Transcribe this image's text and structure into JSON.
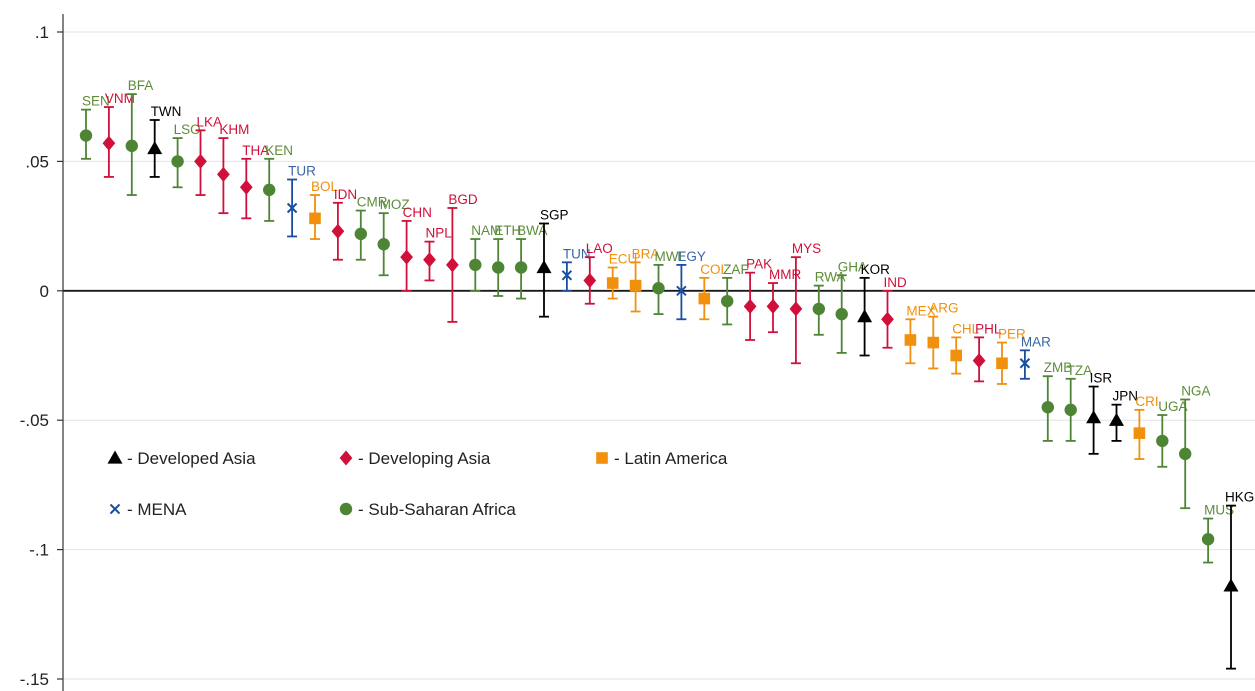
{
  "chart_data": {
    "type": "scatter",
    "title": "",
    "xlabel": "",
    "ylabel": "",
    "ylim": [
      -0.15,
      0.1
    ],
    "yticks": [
      {
        "value": 0.1,
        "label": ".1"
      },
      {
        "value": 0.05,
        "label": ".05"
      },
      {
        "value": 0,
        "label": "0"
      },
      {
        "value": -0.05,
        "label": "-.05"
      },
      {
        "value": -0.1,
        "label": "-.1"
      },
      {
        "value": -0.15,
        "label": "-.15"
      }
    ],
    "grid": true,
    "zero_line": true,
    "legend_position": "lower-left",
    "groups": [
      {
        "key": "dev_asia",
        "name": "- Developed Asia",
        "color": "#000000",
        "marker": "triangle"
      },
      {
        "key": "devg_asia",
        "name": "- Developing Asia",
        "color": "#d0103a",
        "marker": "diamond"
      },
      {
        "key": "latam",
        "name": "- Latin America",
        "color": "#f0900c",
        "marker": "square"
      },
      {
        "key": "mena",
        "name": "- MENA",
        "color": "#1a4fa0",
        "marker": "x"
      },
      {
        "key": "ssa",
        "name": "- Sub-Saharan Africa",
        "color": "#4e8535",
        "marker": "circle"
      }
    ],
    "label_colors": {
      "dev_asia": "#000000",
      "devg_asia": "#d0103a",
      "latam": "#f0900c",
      "mena": "#3a66a8",
      "ssa": "#5e8c3a"
    },
    "points": [
      {
        "label": "SEN",
        "group": "ssa",
        "value": 0.06,
        "low": 0.051,
        "high": 0.07
      },
      {
        "label": "VNM",
        "group": "devg_asia",
        "value": 0.057,
        "low": 0.044,
        "high": 0.071
      },
      {
        "label": "BFA",
        "group": "ssa",
        "value": 0.056,
        "low": 0.037,
        "high": 0.076
      },
      {
        "label": "TWN",
        "group": "dev_asia",
        "value": 0.055,
        "low": 0.044,
        "high": 0.066
      },
      {
        "label": "LSO",
        "group": "ssa",
        "value": 0.05,
        "low": 0.04,
        "high": 0.059
      },
      {
        "label": "LKA",
        "group": "devg_asia",
        "value": 0.05,
        "low": 0.037,
        "high": 0.062
      },
      {
        "label": "KHM",
        "group": "devg_asia",
        "value": 0.045,
        "low": 0.03,
        "high": 0.059
      },
      {
        "label": "THA",
        "group": "devg_asia",
        "value": 0.04,
        "low": 0.028,
        "high": 0.051
      },
      {
        "label": "KEN",
        "group": "ssa",
        "value": 0.039,
        "low": 0.027,
        "high": 0.051
      },
      {
        "label": "TUR",
        "group": "mena",
        "value": 0.032,
        "low": 0.021,
        "high": 0.043
      },
      {
        "label": "BOL",
        "group": "latam",
        "value": 0.028,
        "low": 0.02,
        "high": 0.037
      },
      {
        "label": "IDN",
        "group": "devg_asia",
        "value": 0.023,
        "low": 0.012,
        "high": 0.034
      },
      {
        "label": "CMR",
        "group": "ssa",
        "value": 0.022,
        "low": 0.012,
        "high": 0.031
      },
      {
        "label": "MOZ",
        "group": "ssa",
        "value": 0.018,
        "low": 0.006,
        "high": 0.03
      },
      {
        "label": "CHN",
        "group": "devg_asia",
        "value": 0.013,
        "low": 0.0,
        "high": 0.027
      },
      {
        "label": "NPL",
        "group": "devg_asia",
        "value": 0.012,
        "low": 0.004,
        "high": 0.019
      },
      {
        "label": "BGD",
        "group": "devg_asia",
        "value": 0.01,
        "low": -0.012,
        "high": 0.032
      },
      {
        "label": "NAM",
        "group": "ssa",
        "value": 0.01,
        "low": 0.0,
        "high": 0.02
      },
      {
        "label": "ETH",
        "group": "ssa",
        "value": 0.009,
        "low": -0.002,
        "high": 0.02
      },
      {
        "label": "BWA",
        "group": "ssa",
        "value": 0.009,
        "low": -0.003,
        "high": 0.02
      },
      {
        "label": "SGP",
        "group": "dev_asia",
        "value": 0.009,
        "low": -0.01,
        "high": 0.026
      },
      {
        "label": "TUN",
        "group": "mena",
        "value": 0.006,
        "low": 0.0,
        "high": 0.011
      },
      {
        "label": "LAO",
        "group": "devg_asia",
        "value": 0.004,
        "low": -0.005,
        "high": 0.013
      },
      {
        "label": "ECU",
        "group": "latam",
        "value": 0.003,
        "low": -0.003,
        "high": 0.009
      },
      {
        "label": "BRA",
        "group": "latam",
        "value": 0.002,
        "low": -0.008,
        "high": 0.011
      },
      {
        "label": "MWI",
        "group": "ssa",
        "value": 0.001,
        "low": -0.009,
        "high": 0.01
      },
      {
        "label": "EGY",
        "group": "mena",
        "value": 0.0,
        "low": -0.011,
        "high": 0.01
      },
      {
        "label": "COL",
        "group": "latam",
        "value": -0.003,
        "low": -0.011,
        "high": 0.005
      },
      {
        "label": "ZAF",
        "group": "ssa",
        "value": -0.004,
        "low": -0.013,
        "high": 0.005
      },
      {
        "label": "PAK",
        "group": "devg_asia",
        "value": -0.006,
        "low": -0.019,
        "high": 0.007
      },
      {
        "label": "MMR",
        "group": "devg_asia",
        "value": -0.006,
        "low": -0.016,
        "high": 0.003
      },
      {
        "label": "MYS",
        "group": "devg_asia",
        "value": -0.007,
        "low": -0.028,
        "high": 0.013
      },
      {
        "label": "RWA",
        "group": "ssa",
        "value": -0.007,
        "low": -0.017,
        "high": 0.002
      },
      {
        "label": "GHA",
        "group": "ssa",
        "value": -0.009,
        "low": -0.024,
        "high": 0.006
      },
      {
        "label": "KOR",
        "group": "dev_asia",
        "value": -0.01,
        "low": -0.025,
        "high": 0.005
      },
      {
        "label": "IND",
        "group": "devg_asia",
        "value": -0.011,
        "low": -0.022,
        "high": 0.0
      },
      {
        "label": "MEX",
        "group": "latam",
        "value": -0.019,
        "low": -0.028,
        "high": -0.011
      },
      {
        "label": "ARG",
        "group": "latam",
        "value": -0.02,
        "low": -0.03,
        "high": -0.01
      },
      {
        "label": "CHL",
        "group": "latam",
        "value": -0.025,
        "low": -0.032,
        "high": -0.018
      },
      {
        "label": "PHL",
        "group": "devg_asia",
        "value": -0.027,
        "low": -0.035,
        "high": -0.018
      },
      {
        "label": "PER",
        "group": "latam",
        "value": -0.028,
        "low": -0.036,
        "high": -0.02
      },
      {
        "label": "MAR",
        "group": "mena",
        "value": -0.028,
        "low": -0.034,
        "high": -0.023
      },
      {
        "label": "ZMB",
        "group": "ssa",
        "value": -0.045,
        "low": -0.058,
        "high": -0.033
      },
      {
        "label": "TZA",
        "group": "ssa",
        "value": -0.046,
        "low": -0.058,
        "high": -0.034
      },
      {
        "label": "ISR",
        "group": "dev_asia",
        "value": -0.049,
        "low": -0.063,
        "high": -0.037
      },
      {
        "label": "JPN",
        "group": "dev_asia",
        "value": -0.05,
        "low": -0.058,
        "high": -0.044
      },
      {
        "label": "CRI",
        "group": "latam",
        "value": -0.055,
        "low": -0.065,
        "high": -0.046
      },
      {
        "label": "UGA",
        "group": "ssa",
        "value": -0.058,
        "low": -0.068,
        "high": -0.048
      },
      {
        "label": "NGA",
        "group": "ssa",
        "value": -0.063,
        "low": -0.084,
        "high": -0.042
      },
      {
        "label": "MUS",
        "group": "ssa",
        "value": -0.096,
        "low": -0.105,
        "high": -0.088
      },
      {
        "label": "HKG",
        "group": "dev_asia",
        "value": -0.114,
        "low": -0.146,
        "high": -0.083
      }
    ]
  }
}
